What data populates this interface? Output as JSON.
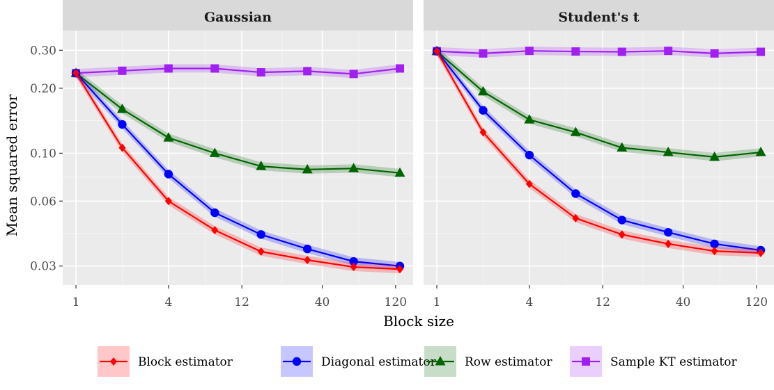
{
  "chart_data": {
    "type": "line",
    "x": [
      1,
      2,
      4,
      8,
      16,
      32,
      64,
      128
    ],
    "xlabel": "Block size",
    "ylabel": "Mean squared error",
    "x_scale": "log",
    "y_scale": "log",
    "xlim": [
      0.82,
      156
    ],
    "ylim": [
      0.0245,
      0.37
    ],
    "x_ticks": [
      1,
      4,
      12,
      40,
      120
    ],
    "x_tick_labels": [
      "1",
      "4",
      "12",
      "40",
      "120"
    ],
    "y_ticks": [
      0.03,
      0.06,
      0.1,
      0.2,
      0.3
    ],
    "y_tick_labels": [
      "0.03",
      "0.06",
      "0.10",
      "0.20",
      "0.30"
    ],
    "grid": true,
    "legend_position": "bottom",
    "colors": {
      "Block estimator": "#ff0000",
      "Diagonal estimator": "#0000ff",
      "Row estimator": "#006400",
      "Sample KT estimator": "#a020f0"
    },
    "markers": {
      "Block estimator": "diamond",
      "Diagonal estimator": "circle",
      "Row estimator": "triangle",
      "Sample KT estimator": "square"
    },
    "panels": [
      {
        "title": "Gaussian",
        "series": [
          {
            "name": "Block estimator",
            "values": [
              0.235,
              0.106,
              0.06,
              0.044,
              0.035,
              0.032,
              0.0297,
              0.029
            ]
          },
          {
            "name": "Diagonal estimator",
            "values": [
              0.235,
              0.136,
              0.08,
              0.053,
              0.042,
              0.036,
              0.0315,
              0.03
            ]
          },
          {
            "name": "Row estimator",
            "values": [
              0.235,
              0.16,
              0.118,
              0.1,
              0.087,
              0.084,
              0.085,
              0.081
            ]
          },
          {
            "name": "Sample KT estimator",
            "values": [
              0.235,
              0.241,
              0.247,
              0.247,
              0.237,
              0.24,
              0.233,
              0.247
            ]
          }
        ]
      },
      {
        "title": "Student's t",
        "series": [
          {
            "name": "Block estimator",
            "values": [
              0.297,
              0.125,
              0.072,
              0.05,
              0.042,
              0.038,
              0.0352,
              0.0345
            ]
          },
          {
            "name": "Diagonal estimator",
            "values": [
              0.297,
              0.158,
              0.098,
              0.065,
              0.049,
              0.043,
              0.038,
              0.0355
            ]
          },
          {
            "name": "Row estimator",
            "values": [
              0.297,
              0.193,
              0.143,
              0.125,
              0.106,
              0.101,
              0.096,
              0.101
            ]
          },
          {
            "name": "Sample KT estimator",
            "values": [
              0.297,
              0.29,
              0.298,
              0.296,
              0.295,
              0.298,
              0.29,
              0.295
            ]
          }
        ]
      }
    ]
  }
}
